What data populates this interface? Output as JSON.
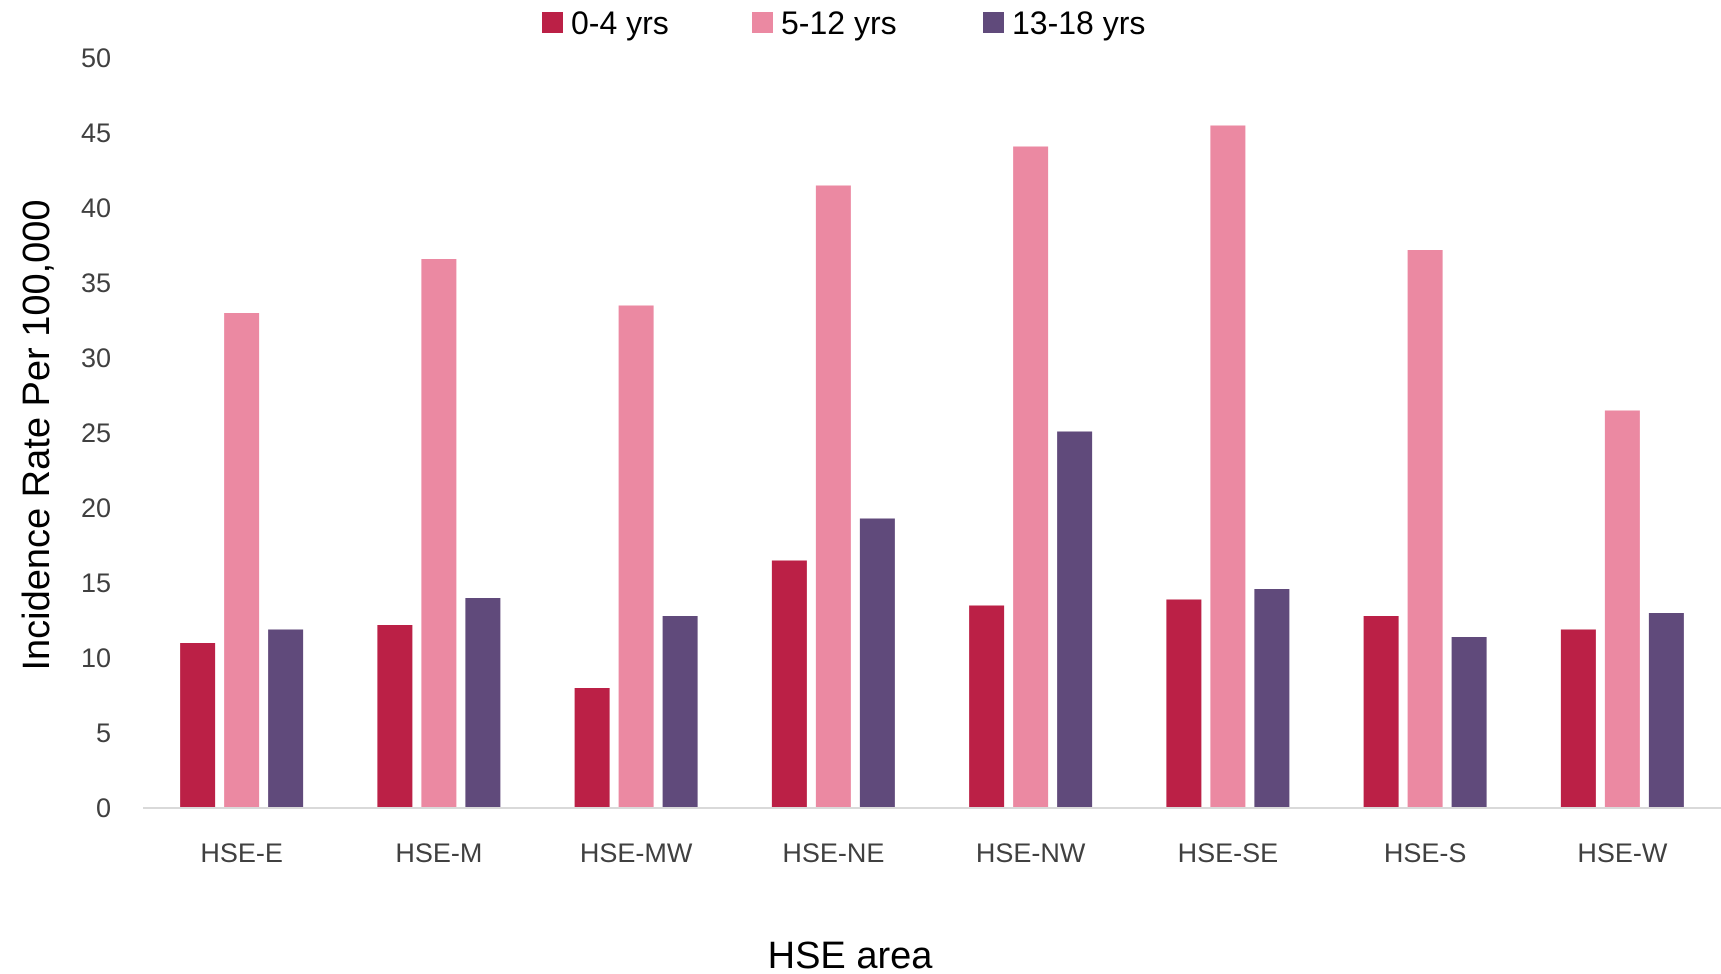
{
  "chart_data": {
    "type": "bar",
    "title": "",
    "xlabel": "HSE area",
    "ylabel": "Incidence Rate Per 100,000",
    "ylim": [
      0,
      50
    ],
    "yticks": [
      0,
      5,
      10,
      15,
      20,
      25,
      30,
      35,
      40,
      45,
      50
    ],
    "grid": false,
    "legend_position": "top-center",
    "categories": [
      "HSE-E",
      "HSE-M",
      "HSE-MW",
      "HSE-NE",
      "HSE-NW",
      "HSE-SE",
      "HSE-S",
      "HSE-W"
    ],
    "series": [
      {
        "name": "0-4 yrs",
        "color": "#bb2046",
        "values": [
          11.0,
          12.2,
          8.0,
          16.5,
          13.5,
          13.9,
          12.8,
          11.9
        ]
      },
      {
        "name": "5-12 yrs",
        "color": "#eb89a2",
        "values": [
          33.0,
          36.6,
          33.5,
          41.5,
          44.1,
          45.5,
          37.2,
          26.5
        ]
      },
      {
        "name": "13-18 yrs",
        "color": "#604a7b",
        "values": [
          11.9,
          14.0,
          12.8,
          19.3,
          25.1,
          14.6,
          11.4,
          13.0
        ]
      }
    ]
  }
}
